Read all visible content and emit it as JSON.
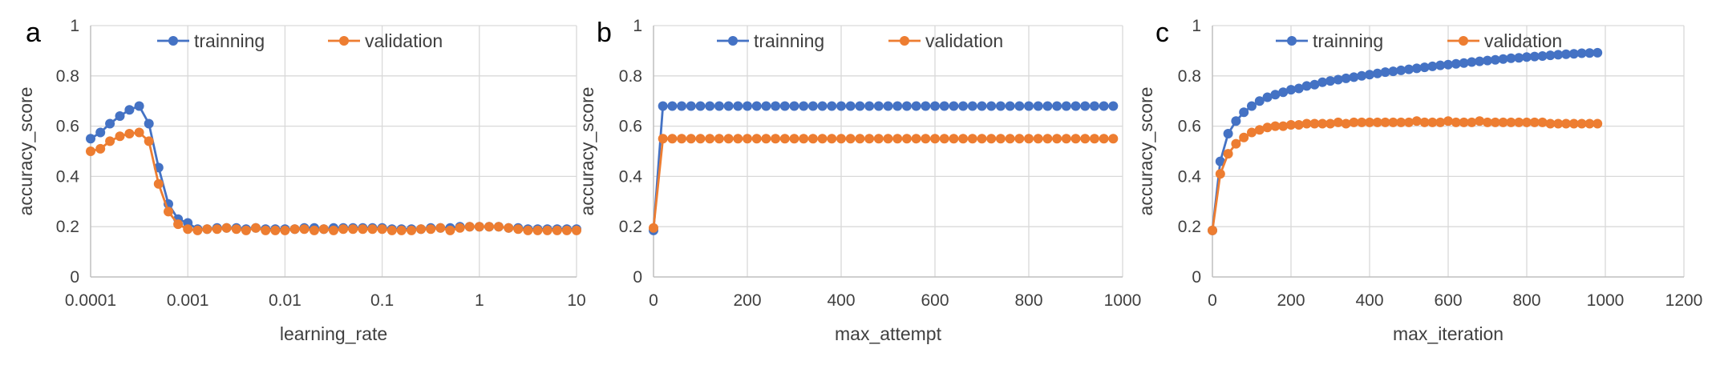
{
  "colors": {
    "trainning": "#4472C4",
    "validation": "#ED7D31",
    "grid": "#D9D9D9",
    "axis": "#BFBFBF"
  },
  "legend": {
    "trainning": "trainning",
    "validation": "validation",
    "placement": "top-center"
  },
  "chart_data": [
    {
      "type": "line",
      "panel_label": "a",
      "xlabel": "learning_rate",
      "ylabel": "accuracy_score",
      "x_scale": "log",
      "xlim": [
        0.0001,
        10
      ],
      "x_tick_labels": [
        "0.0001",
        "0.001",
        "0.01",
        "0.1",
        "1",
        "10"
      ],
      "x_ticks": [
        0.0001,
        0.001,
        0.01,
        0.1,
        1,
        10
      ],
      "ylim": [
        0,
        1
      ],
      "y_tick_labels": [
        "0",
        "0.2",
        "0.4",
        "0.6",
        "0.8",
        "1"
      ],
      "y_ticks": [
        0,
        0.2,
        0.4,
        0.6,
        0.8,
        1
      ],
      "grid": true,
      "x": [
        0.0001,
        0.000126,
        0.000158,
        0.0002,
        0.000251,
        0.000316,
        0.000398,
        0.000501,
        0.000631,
        0.000794,
        0.001,
        0.00126,
        0.00158,
        0.002,
        0.00251,
        0.00316,
        0.00398,
        0.00501,
        0.00631,
        0.00794,
        0.01,
        0.0126,
        0.0158,
        0.02,
        0.0251,
        0.0316,
        0.0398,
        0.0501,
        0.0631,
        0.0794,
        0.1,
        0.126,
        0.158,
        0.2,
        0.251,
        0.316,
        0.398,
        0.501,
        0.631,
        0.794,
        1,
        1.26,
        1.58,
        2,
        2.51,
        3.16,
        3.98,
        5.01,
        6.31,
        7.94,
        10
      ],
      "series": [
        {
          "name": "trainning",
          "values": [
            0.55,
            0.575,
            0.61,
            0.64,
            0.665,
            0.68,
            0.61,
            0.435,
            0.29,
            0.23,
            0.215,
            0.19,
            0.19,
            0.195,
            0.195,
            0.195,
            0.19,
            0.195,
            0.19,
            0.19,
            0.19,
            0.19,
            0.195,
            0.195,
            0.19,
            0.195,
            0.195,
            0.195,
            0.195,
            0.195,
            0.195,
            0.19,
            0.19,
            0.19,
            0.19,
            0.195,
            0.195,
            0.195,
            0.2,
            0.2,
            0.2,
            0.2,
            0.2,
            0.195,
            0.195,
            0.19,
            0.19,
            0.19,
            0.19,
            0.19,
            0.19
          ]
        },
        {
          "name": "validation",
          "values": [
            0.5,
            0.51,
            0.54,
            0.56,
            0.57,
            0.575,
            0.54,
            0.37,
            0.26,
            0.21,
            0.19,
            0.185,
            0.19,
            0.19,
            0.195,
            0.19,
            0.185,
            0.195,
            0.185,
            0.185,
            0.185,
            0.19,
            0.19,
            0.185,
            0.19,
            0.185,
            0.19,
            0.19,
            0.19,
            0.19,
            0.19,
            0.185,
            0.185,
            0.185,
            0.19,
            0.19,
            0.195,
            0.185,
            0.195,
            0.2,
            0.2,
            0.2,
            0.2,
            0.195,
            0.19,
            0.185,
            0.185,
            0.185,
            0.185,
            0.185,
            0.185
          ]
        }
      ]
    },
    {
      "type": "line",
      "panel_label": "b",
      "xlabel": "max_attempt",
      "ylabel": "accuracy_score",
      "x_scale": "linear",
      "xlim": [
        0,
        1000
      ],
      "x_tick_labels": [
        "0",
        "200",
        "400",
        "600",
        "800",
        "1000"
      ],
      "x_ticks": [
        0,
        200,
        400,
        600,
        800,
        1000
      ],
      "ylim": [
        0,
        1
      ],
      "y_tick_labels": [
        "0",
        "0.2",
        "0.4",
        "0.6",
        "0.8",
        "1"
      ],
      "y_ticks": [
        0,
        0.2,
        0.4,
        0.6,
        0.8,
        1
      ],
      "grid": true,
      "x": [
        0,
        20,
        40,
        60,
        80,
        100,
        120,
        140,
        160,
        180,
        200,
        220,
        240,
        260,
        280,
        300,
        320,
        340,
        360,
        380,
        400,
        420,
        440,
        460,
        480,
        500,
        520,
        540,
        560,
        580,
        600,
        620,
        640,
        660,
        680,
        700,
        720,
        740,
        760,
        780,
        800,
        820,
        840,
        860,
        880,
        900,
        920,
        940,
        960,
        980
      ],
      "series": [
        {
          "name": "trainning",
          "values": [
            0.185,
            0.68,
            0.68,
            0.68,
            0.68,
            0.68,
            0.68,
            0.68,
            0.68,
            0.68,
            0.68,
            0.68,
            0.68,
            0.68,
            0.68,
            0.68,
            0.68,
            0.68,
            0.68,
            0.68,
            0.68,
            0.68,
            0.68,
            0.68,
            0.68,
            0.68,
            0.68,
            0.68,
            0.68,
            0.68,
            0.68,
            0.68,
            0.68,
            0.68,
            0.68,
            0.68,
            0.68,
            0.68,
            0.68,
            0.68,
            0.68,
            0.68,
            0.68,
            0.68,
            0.68,
            0.68,
            0.68,
            0.68,
            0.68,
            0.68
          ]
        },
        {
          "name": "validation",
          "values": [
            0.195,
            0.55,
            0.55,
            0.55,
            0.55,
            0.55,
            0.55,
            0.55,
            0.55,
            0.55,
            0.55,
            0.55,
            0.55,
            0.55,
            0.55,
            0.55,
            0.55,
            0.55,
            0.55,
            0.55,
            0.55,
            0.55,
            0.55,
            0.55,
            0.55,
            0.55,
            0.55,
            0.55,
            0.55,
            0.55,
            0.55,
            0.55,
            0.55,
            0.55,
            0.55,
            0.55,
            0.55,
            0.55,
            0.55,
            0.55,
            0.55,
            0.55,
            0.55,
            0.55,
            0.55,
            0.55,
            0.55,
            0.55,
            0.55,
            0.55
          ]
        }
      ]
    },
    {
      "type": "line",
      "panel_label": "c",
      "xlabel": "max_iteration",
      "ylabel": "accuracy_score",
      "x_scale": "linear",
      "xlim": [
        0,
        1200
      ],
      "x_tick_labels": [
        "0",
        "200",
        "400",
        "600",
        "800",
        "1000",
        "1200"
      ],
      "x_ticks": [
        0,
        200,
        400,
        600,
        800,
        1000,
        1200
      ],
      "ylim": [
        0,
        1
      ],
      "y_tick_labels": [
        "0",
        "0.2",
        "0.4",
        "0.6",
        "0.8",
        "1"
      ],
      "y_ticks": [
        0,
        0.2,
        0.4,
        0.6,
        0.8,
        1
      ],
      "grid": true,
      "x": [
        0,
        20,
        40,
        60,
        80,
        100,
        120,
        140,
        160,
        180,
        200,
        220,
        240,
        260,
        280,
        300,
        320,
        340,
        360,
        380,
        400,
        420,
        440,
        460,
        480,
        500,
        520,
        540,
        560,
        580,
        600,
        620,
        640,
        660,
        680,
        700,
        720,
        740,
        760,
        780,
        800,
        820,
        840,
        860,
        880,
        900,
        920,
        940,
        960,
        980
      ],
      "series": [
        {
          "name": "trainning",
          "values": [
            0.185,
            0.46,
            0.57,
            0.62,
            0.655,
            0.68,
            0.7,
            0.715,
            0.725,
            0.735,
            0.745,
            0.75,
            0.76,
            0.765,
            0.775,
            0.78,
            0.785,
            0.79,
            0.795,
            0.8,
            0.805,
            0.81,
            0.815,
            0.818,
            0.822,
            0.826,
            0.83,
            0.834,
            0.838,
            0.842,
            0.845,
            0.848,
            0.851,
            0.855,
            0.858,
            0.861,
            0.864,
            0.867,
            0.87,
            0.872,
            0.875,
            0.877,
            0.879,
            0.882,
            0.884,
            0.886,
            0.888,
            0.89,
            0.891,
            0.892
          ]
        },
        {
          "name": "validation",
          "values": [
            0.185,
            0.41,
            0.49,
            0.53,
            0.555,
            0.575,
            0.585,
            0.595,
            0.6,
            0.6,
            0.605,
            0.605,
            0.61,
            0.61,
            0.61,
            0.61,
            0.615,
            0.61,
            0.615,
            0.615,
            0.615,
            0.615,
            0.615,
            0.615,
            0.615,
            0.615,
            0.62,
            0.615,
            0.615,
            0.615,
            0.62,
            0.615,
            0.615,
            0.615,
            0.62,
            0.615,
            0.615,
            0.615,
            0.615,
            0.615,
            0.615,
            0.615,
            0.615,
            0.61,
            0.61,
            0.61,
            0.61,
            0.61,
            0.61,
            0.61
          ]
        }
      ]
    }
  ]
}
